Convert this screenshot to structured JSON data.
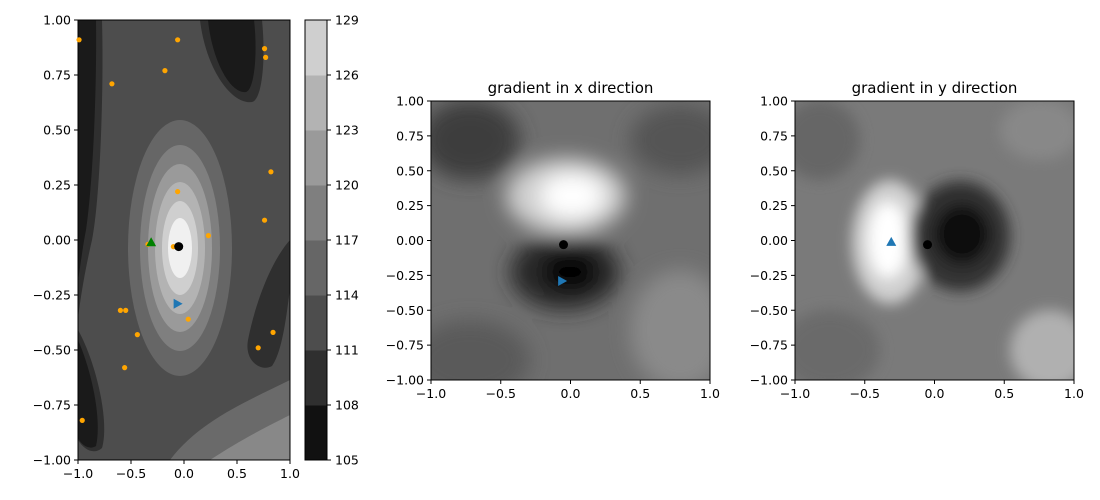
{
  "chart_data": [
    {
      "type": "contour",
      "title": "",
      "xlabel": "",
      "ylabel": "",
      "xlim": [
        -1,
        1
      ],
      "ylim": [
        -1,
        1
      ],
      "xticks": [
        "−1.0",
        "−0.5",
        "0.0",
        "0.5",
        "1.0"
      ],
      "yticks": [
        "1.00",
        "0.75",
        "0.50",
        "0.25",
        "0.00",
        "−0.25",
        "−0.50",
        "−0.75",
        "−1.00"
      ],
      "colorbar": {
        "range": [
          105,
          129
        ],
        "ticks": [
          "129",
          "126",
          "123",
          "120",
          "117",
          "114",
          "111",
          "108",
          "105"
        ]
      },
      "markers": {
        "black_point": {
          "x": -0.05,
          "y": -0.03,
          "color": "#000000"
        },
        "green_triangle": {
          "x": -0.31,
          "y": -0.01,
          "color": "#008000"
        },
        "blue_right_triangle": {
          "x": -0.06,
          "y": -0.29,
          "color": "#1f77b4"
        },
        "orange_points": {
          "color": "#ffa500",
          "points": [
            [
              -0.99,
              0.91
            ],
            [
              -0.06,
              0.91
            ],
            [
              0.76,
              0.87
            ],
            [
              0.77,
              0.83
            ],
            [
              -0.68,
              0.71
            ],
            [
              -0.18,
              0.77
            ],
            [
              0.82,
              0.31
            ],
            [
              -0.06,
              0.22
            ],
            [
              0.76,
              0.09
            ],
            [
              0.23,
              0.02
            ],
            [
              -0.34,
              -0.02
            ],
            [
              -0.1,
              -0.03
            ],
            [
              0.04,
              -0.36
            ],
            [
              -0.6,
              -0.32
            ],
            [
              -0.55,
              -0.32
            ],
            [
              0.84,
              -0.42
            ],
            [
              -0.44,
              -0.43
            ],
            [
              0.7,
              -0.49
            ],
            [
              -0.56,
              -0.58
            ],
            [
              -0.96,
              -0.82
            ]
          ]
        }
      }
    },
    {
      "type": "heatmap",
      "title": "gradient in x direction",
      "xlim": [
        -1,
        1
      ],
      "ylim": [
        -1,
        1
      ],
      "xticks": [
        "−1.0",
        "−0.5",
        "0.0",
        "0.5",
        "1.0"
      ],
      "yticks": [
        "1.00",
        "0.75",
        "0.50",
        "0.25",
        "0.00",
        "−0.25",
        "−0.50",
        "−0.75",
        "−1.00"
      ],
      "markers": {
        "black_point": {
          "x": -0.05,
          "y": -0.03,
          "color": "#000000"
        },
        "blue_right_triangle": {
          "x": -0.06,
          "y": -0.29,
          "color": "#1f77b4"
        }
      }
    },
    {
      "type": "heatmap",
      "title": "gradient in y direction",
      "xlim": [
        -1,
        1
      ],
      "ylim": [
        -1,
        1
      ],
      "xticks": [
        "−1.0",
        "−0.5",
        "0.0",
        "0.5",
        "1.0"
      ],
      "yticks": [
        "1.00",
        "0.75",
        "0.50",
        "0.25",
        "0.00",
        "−0.25",
        "−0.50",
        "−0.75",
        "−1.00"
      ],
      "markers": {
        "black_point": {
          "x": -0.05,
          "y": -0.03,
          "color": "#000000"
        },
        "blue_triangle": {
          "x": -0.31,
          "y": -0.01,
          "color": "#1f77b4"
        }
      }
    }
  ]
}
